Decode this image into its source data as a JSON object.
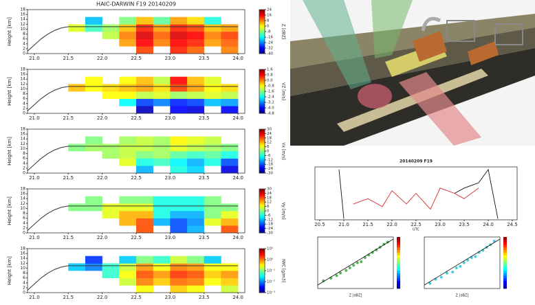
{
  "chart_data": [
    {
      "type": "heatmap",
      "title": "HAIC-DARWIN F19  20140209",
      "ylabel": "Height [km]",
      "clabel": "Z [dBZ]",
      "xlim": [
        20.9,
        24.1
      ],
      "xticks": [
        {
          "value": 21,
          "label": "21.0"
        },
        21.5,
        {
          "value": 22,
          "label": "22.0"
        },
        22.5,
        {
          "value": 23,
          "label": "23.0"
        },
        23.5,
        {
          "value": 24,
          "label": "24.0"
        }
      ],
      "ylim": [
        0,
        18
      ],
      "yticks": [
        0,
        2,
        4,
        6,
        8,
        10,
        12,
        14,
        16,
        18
      ],
      "x_bins": [
        21.5,
        21.75,
        22.0,
        22.25,
        22.5,
        22.75,
        23.0,
        23.25,
        23.5,
        23.75,
        24.0
      ],
      "y_bins": [
        0,
        3,
        6,
        9,
        12,
        15,
        18
      ],
      "z": [
        [
          null,
          null,
          null,
          null,
          12,
          null,
          14,
          10,
          null,
          8
        ],
        [
          null,
          null,
          null,
          6,
          16,
          8,
          16,
          14,
          6,
          10
        ],
        [
          null,
          null,
          -4,
          8,
          18,
          10,
          18,
          16,
          8,
          12
        ],
        [
          -2,
          -12,
          -6,
          4,
          14,
          6,
          14,
          12,
          4,
          6
        ],
        [
          null,
          -20,
          null,
          -8,
          4,
          -10,
          6,
          2,
          -14,
          null
        ],
        [
          null,
          null,
          null,
          null,
          null,
          null,
          null,
          null,
          null,
          null
        ]
      ],
      "clim": [
        -40,
        24
      ],
      "cticks": [
        24,
        16,
        8,
        0,
        -8,
        -16,
        -24,
        -32,
        -40
      ],
      "colormap": "jet",
      "line_x": [
        20.9,
        21.0,
        21.1,
        21.2,
        21.3,
        21.4,
        21.5,
        24.0
      ],
      "line_y": [
        1,
        3.5,
        6,
        8,
        9.5,
        10.5,
        11,
        11
      ],
      "line_color": "#333333"
    },
    {
      "type": "heatmap",
      "ylabel": "Height [km]",
      "clabel": "VZ [m/s]",
      "xlim": [
        20.9,
        24.1
      ],
      "xticks": [
        {
          "value": 21,
          "label": "21.0"
        },
        21.5,
        {
          "value": 22,
          "label": "22.0"
        },
        22.5,
        {
          "value": 23,
          "label": "23.0"
        },
        23.5,
        {
          "value": 24,
          "label": "24.0"
        }
      ],
      "ylim": [
        0,
        18
      ],
      "yticks": [
        0,
        2,
        4,
        6,
        8,
        10,
        12,
        14,
        16,
        18
      ],
      "x_bins": [
        21.5,
        21.75,
        22.0,
        22.25,
        22.5,
        22.75,
        23.0,
        23.25,
        23.5,
        23.75,
        24.0
      ],
      "y_bins": [
        0,
        3,
        6,
        9,
        12,
        15,
        18
      ],
      "z": [
        [
          null,
          null,
          null,
          null,
          -4.4,
          null,
          -4.0,
          -4.2,
          null,
          -4.0
        ],
        [
          null,
          null,
          null,
          -2.4,
          -3.6,
          -3.2,
          -3.8,
          -3.6,
          -2.8,
          -3.0
        ],
        [
          null,
          null,
          -0.8,
          -0.8,
          -1.2,
          -1.0,
          -1.4,
          -1.2,
          -1.0,
          -1.2
        ],
        [
          -0.4,
          -0.8,
          -0.6,
          -0.4,
          -0.2,
          -0.6,
          0.4,
          -0.2,
          -0.8,
          -0.6
        ],
        [
          null,
          -0.8,
          null,
          -0.8,
          -0.4,
          -1.2,
          0.8,
          -0.4,
          -1.0,
          null
        ],
        [
          null,
          null,
          null,
          null,
          null,
          null,
          null,
          null,
          null,
          null
        ]
      ],
      "clim": [
        -4.8,
        1.6
      ],
      "cticks": [
        1.6,
        0.8,
        {
          "value": 0,
          "label": "0.0"
        },
        -0.8,
        -1.6,
        -2.4,
        -3.2,
        {
          "value": -4,
          "label": "-4.0"
        },
        -4.8
      ],
      "colormap": "jet",
      "line_x": [
        20.9,
        21.0,
        21.1,
        21.2,
        21.3,
        21.4,
        21.5,
        24.0
      ],
      "line_y": [
        1,
        3.5,
        6,
        8,
        9.5,
        10.5,
        11,
        11
      ],
      "line_color": "#333333"
    },
    {
      "type": "heatmap",
      "ylabel": "Height [km]",
      "clabel": "Vx [m/s]",
      "xlim": [
        20.9,
        24.1
      ],
      "xticks": [
        {
          "value": 21,
          "label": "21.0"
        },
        21.5,
        {
          "value": 22,
          "label": "22.0"
        },
        22.5,
        {
          "value": 23,
          "label": "23.0"
        },
        23.5,
        {
          "value": 24,
          "label": "24.0"
        }
      ],
      "ylim": [
        0,
        18
      ],
      "yticks": [
        0,
        2,
        4,
        6,
        8,
        10,
        12,
        14,
        16,
        18
      ],
      "x_bins": [
        21.5,
        21.75,
        22.0,
        22.25,
        22.5,
        22.75,
        23.0,
        23.25,
        23.5,
        23.75,
        24.0
      ],
      "y_bins": [
        0,
        3,
        6,
        9,
        12,
        15,
        18
      ],
      "z": [
        [
          null,
          null,
          null,
          null,
          -12,
          null,
          -6,
          -10,
          null,
          -24
        ],
        [
          null,
          null,
          null,
          6,
          -6,
          -4,
          -8,
          -12,
          -6,
          -18
        ],
        [
          null,
          null,
          2,
          4,
          0,
          2,
          -2,
          -4,
          -2,
          -6
        ],
        [
          0,
          2,
          2,
          4,
          4,
          2,
          6,
          4,
          2,
          0
        ],
        [
          null,
          0,
          null,
          2,
          4,
          2,
          8,
          6,
          4,
          null
        ],
        [
          null,
          null,
          null,
          null,
          null,
          null,
          null,
          null,
          null,
          null
        ]
      ],
      "clim": [
        -30,
        30
      ],
      "cticks": [
        30,
        24,
        18,
        12,
        6,
        0,
        -6,
        -12,
        -18,
        -24,
        -30
      ],
      "colormap": "jet",
      "line_x": [
        20.9,
        21.0,
        21.1,
        21.2,
        21.3,
        21.4,
        21.5,
        24.0
      ],
      "line_y": [
        1,
        3.5,
        6,
        8,
        9.5,
        10.5,
        11,
        11
      ],
      "line_color": "#333333"
    },
    {
      "type": "heatmap",
      "ylabel": "Height [km]",
      "clabel": "Vy [m/s]",
      "xlim": [
        20.9,
        24.1
      ],
      "xticks": [
        {
          "value": 21,
          "label": "21.0"
        },
        21.5,
        {
          "value": 22,
          "label": "22.0"
        },
        22.5,
        {
          "value": 23,
          "label": "23.0"
        },
        23.5,
        {
          "value": 24,
          "label": "24.0"
        }
      ],
      "ylim": [
        0,
        18
      ],
      "yticks": [
        0,
        2,
        4,
        6,
        8,
        10,
        12,
        14,
        16,
        18
      ],
      "x_bins": [
        21.5,
        21.75,
        22.0,
        22.25,
        22.5,
        22.75,
        23.0,
        23.25,
        23.5,
        23.75,
        24.0
      ],
      "y_bins": [
        0,
        3,
        6,
        9,
        12,
        15,
        18
      ],
      "z": [
        [
          null,
          null,
          null,
          null,
          18,
          null,
          -18,
          -12,
          null,
          18
        ],
        [
          null,
          null,
          null,
          12,
          18,
          -12,
          -18,
          -14,
          6,
          12
        ],
        [
          null,
          null,
          6,
          12,
          12,
          -6,
          -12,
          -12,
          0,
          6
        ],
        [
          0,
          0,
          6,
          6,
          6,
          -6,
          -6,
          -6,
          0,
          0
        ],
        [
          null,
          0,
          null,
          0,
          0,
          -6,
          -6,
          -6,
          0,
          null
        ],
        [
          null,
          null,
          null,
          null,
          null,
          null,
          null,
          null,
          null,
          null
        ]
      ],
      "clim": [
        -30,
        30
      ],
      "cticks": [
        30,
        24,
        18,
        12,
        6,
        0,
        -6,
        -12,
        -18,
        -24,
        -30
      ],
      "colormap": "jet",
      "line_x": [
        20.9,
        21.0,
        21.1,
        21.2,
        21.3,
        21.4,
        21.5,
        24.0
      ],
      "line_y": [
        1,
        3.5,
        6,
        8,
        9.5,
        10.5,
        11,
        11
      ],
      "line_color": "#333333"
    },
    {
      "type": "heatmap",
      "ylabel": "Height [km]",
      "clabel": "IWC [g/m3]",
      "xlim": [
        20.9,
        24.1
      ],
      "xticks": [
        {
          "value": 21,
          "label": "21.0"
        },
        21.5,
        {
          "value": 22,
          "label": "22.0"
        },
        22.5,
        {
          "value": 23,
          "label": "23.0"
        },
        23.5,
        {
          "value": 24,
          "label": "24.0"
        }
      ],
      "ylim": [
        0,
        18
      ],
      "yticks": [
        0,
        2,
        4,
        6,
        8,
        10,
        12,
        14,
        16,
        18
      ],
      "x_bins": [
        21.5,
        21.75,
        22.0,
        22.25,
        22.5,
        22.75,
        23.0,
        23.25,
        23.5,
        23.75,
        24.0
      ],
      "y_bins": [
        0,
        3,
        6,
        9,
        12,
        15,
        18
      ],
      "z": [
        [
          null,
          null,
          null,
          null,
          0.3,
          null,
          0.5,
          0.3,
          null,
          0.2
        ],
        [
          null,
          null,
          null,
          0.2,
          1,
          0.5,
          1.2,
          1,
          0.3,
          0.5
        ],
        [
          null,
          null,
          0.05,
          0.3,
          1.5,
          0.8,
          2,
          1.5,
          0.5,
          0.8
        ],
        [
          0.02,
          0.01,
          0.05,
          0.2,
          0.8,
          0.3,
          1,
          0.8,
          0.3,
          0.3
        ],
        [
          null,
          0.005,
          null,
          0.02,
          0.1,
          0.05,
          0.2,
          0.1,
          0.02,
          null
        ],
        [
          null,
          null,
          null,
          null,
          null,
          null,
          null,
          null,
          null,
          null
        ]
      ],
      "clim": [
        0.001,
        10
      ],
      "clog": true,
      "cticks": [
        {
          "value": 10,
          "label": "10¹"
        },
        {
          "value": 1,
          "label": "10⁰"
        },
        {
          "value": 0.1,
          "label": "10⁻¹"
        },
        {
          "value": 0.01,
          "label": "10⁻²"
        },
        {
          "value": 0.001,
          "label": "10⁻³"
        }
      ],
      "colormap": "jet",
      "line_x": [
        20.9,
        21.0,
        21.1,
        21.2,
        21.3,
        21.4,
        21.5,
        24.0
      ],
      "line_y": [
        1,
        3.5,
        6,
        8,
        9.5,
        10.5,
        11,
        11
      ],
      "line_color": "#333333"
    },
    {
      "type": "line",
      "title": "20140209 F19",
      "xlabel": "UTC",
      "xlim": [
        20.4,
        24.6
      ],
      "xticks": [
        20.5,
        {
          "value": 21,
          "label": "21.0"
        },
        21.5,
        {
          "value": 22,
          "label": "22.0"
        },
        22.5,
        {
          "value": 23,
          "label": "23.0"
        },
        23.5,
        {
          "value": 24,
          "label": "24.0"
        },
        24.5
      ],
      "ylim": [
        0,
        10
      ],
      "x": [
        20.5,
        20.9,
        21.0,
        21.2,
        21.5,
        21.8,
        22.0,
        22.3,
        22.5,
        22.8,
        23.0,
        23.3,
        23.5,
        23.8,
        24.0,
        24.2
      ],
      "series": [
        {
          "color": "#111111",
          "values": [
            null,
            9.5,
            0.2,
            null,
            null,
            null,
            null,
            null,
            null,
            null,
            null,
            5,
            6,
            7,
            9.5,
            0.2
          ]
        },
        {
          "color": "#d62728",
          "values": [
            null,
            null,
            null,
            3,
            4,
            2.5,
            5.5,
            3,
            5,
            2,
            6,
            5,
            4,
            6,
            null,
            null
          ]
        }
      ]
    },
    {
      "type": "scatter",
      "xlabel": "Z [dBZ]",
      "xlim": [
        -15,
        25
      ],
      "ylim": [
        0,
        10
      ],
      "color": "#2ca02c",
      "x": [
        -12,
        -8,
        -5,
        -3,
        0,
        2,
        4,
        6,
        8,
        10,
        12,
        14,
        16,
        18,
        20,
        22
      ],
      "y": [
        1.5,
        2,
        2.5,
        3,
        3.5,
        4,
        4.5,
        5,
        5.2,
        6,
        6.5,
        7,
        7.5,
        8,
        8.6,
        9
      ]
    },
    {
      "type": "scatter",
      "xlabel": "Z [dBZ]",
      "xlim": [
        -15,
        25
      ],
      "ylim": [
        0,
        10
      ],
      "color": "#17becf",
      "x": [
        -12,
        -9,
        -6,
        -3,
        0,
        2,
        4,
        6,
        8,
        10,
        12,
        14,
        16,
        18,
        20,
        22
      ],
      "y": [
        1,
        1.8,
        2.2,
        3,
        3.2,
        4,
        4.3,
        5,
        5.5,
        6,
        6.2,
        7,
        7.4,
        8,
        8.5,
        9.2
      ]
    }
  ]
}
